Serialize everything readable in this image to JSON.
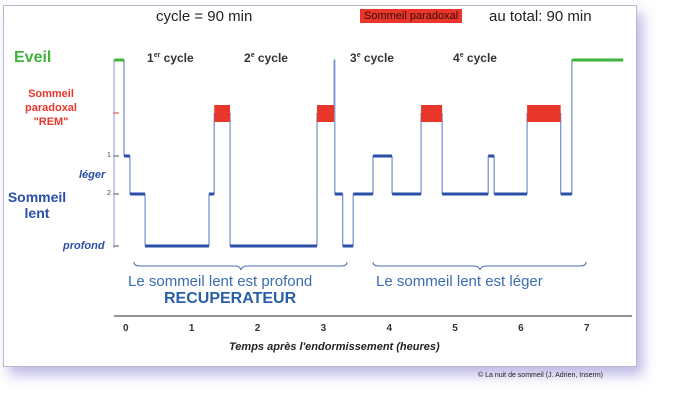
{
  "header": {
    "cycle_text": "cycle = 90 min",
    "legend_badge": "Sommeil paradoxal",
    "total_text": "au total: 90 min"
  },
  "cycles": [
    {
      "num": "1",
      "sup": "er",
      "label": " cycle"
    },
    {
      "num": "2",
      "sup": "e",
      "label": " cycle"
    },
    {
      "num": "3",
      "sup": "e",
      "label": " cycle"
    },
    {
      "num": "4",
      "sup": "e",
      "label": " cycle"
    }
  ],
  "y_labels": {
    "eveil": "Eveil",
    "rem_line1": "Sommeil",
    "rem_line2": "paradoxal",
    "rem_line3": "\"REM\"",
    "leger": "léger",
    "slow_line1": "Sommeil",
    "slow_line2": "lent",
    "profond": "profond",
    "tick1": "1",
    "tick2": "2"
  },
  "annotations": {
    "deep_text": "Le sommeil lent est profond",
    "deep_sub": "RECUPERATEUR",
    "light_text": "Le sommeil lent est léger"
  },
  "x_axis": {
    "ticks": [
      "0",
      "1",
      "2",
      "3",
      "4",
      "5",
      "6",
      "7"
    ],
    "title": "Temps après l'endormissement (heures)"
  },
  "credit": "© La nuit de sommeil (J. Adrien, Inserm)",
  "colors": {
    "eveil": "#3fb33b",
    "rem": "#e8372a",
    "slow": "#2a4fa8"
  },
  "hypnogram": [
    [
      -0.18,
      -0.03,
      "eveil"
    ],
    [
      -0.03,
      0.06,
      "stage1"
    ],
    [
      0.06,
      0.29,
      "stage2"
    ],
    [
      0.29,
      1.26,
      "deep"
    ],
    [
      1.26,
      1.34,
      "stage2"
    ],
    [
      1.34,
      1.58,
      "rem"
    ],
    [
      1.58,
      2.9,
      "deep"
    ],
    [
      2.9,
      3.16,
      "rem"
    ],
    [
      3.16,
      3.17,
      "eveil"
    ],
    [
      3.17,
      3.29,
      "stage2"
    ],
    [
      3.29,
      3.45,
      "deep"
    ],
    [
      3.45,
      3.75,
      "stage2"
    ],
    [
      3.75,
      4.04,
      "stage1"
    ],
    [
      4.04,
      4.48,
      "stage2"
    ],
    [
      4.48,
      4.8,
      "rem"
    ],
    [
      4.8,
      5.5,
      "stage2"
    ],
    [
      5.5,
      5.59,
      "stage1"
    ],
    [
      5.59,
      6.09,
      "stage2"
    ],
    [
      6.09,
      6.6,
      "rem"
    ],
    [
      6.6,
      6.77,
      "stage2"
    ],
    [
      6.77,
      7.55,
      "eveil"
    ]
  ]
}
